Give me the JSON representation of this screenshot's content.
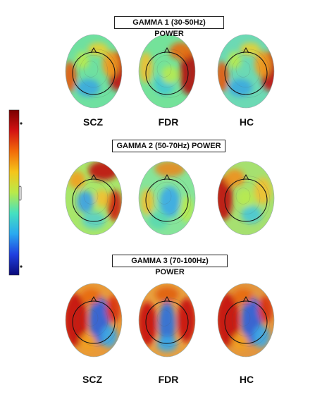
{
  "panels": [
    {
      "title": "GAMMA 1 (30-50Hz) POWER",
      "maps": [
        {
          "group": "SCZ",
          "hot": "right-temporal",
          "bg": "#6fe0a0"
        },
        {
          "group": "FDR",
          "hot": "right-temporal-strong",
          "bg": "#74e29a"
        },
        {
          "group": "HC",
          "hot": "right-temporal",
          "bg": "#6cd9b4"
        }
      ]
    },
    {
      "title": "GAMMA 2 (50-70Hz) POWER",
      "maps": [
        {
          "group": "SCZ",
          "hot": "frontal-right",
          "bg": "#a8e66a"
        },
        {
          "group": "FDR",
          "hot": "frontal-mild",
          "bg": "#86e49a"
        },
        {
          "group": "HC",
          "hot": "left-temporal",
          "bg": "#a6e070"
        }
      ]
    },
    {
      "title": "GAMMA 3 (70-100Hz) POWER",
      "maps": [
        {
          "group": "SCZ",
          "hot": "left-strong",
          "bg": "#e89a3a"
        },
        {
          "group": "FDR",
          "hot": "bilateral",
          "bg": "#e8a040"
        },
        {
          "group": "HC",
          "hot": "left-strong",
          "bg": "#e29640"
        }
      ]
    }
  ],
  "labels_top": [
    "SCZ",
    "FDR",
    "HC"
  ],
  "labels_bottom": [
    "SCZ",
    "FDR",
    "HC"
  ],
  "colorbar": {
    "stops": [
      "#7a0000",
      "#d31212",
      "#f26b0a",
      "#f5c51a",
      "#b9ea4a",
      "#45e0c0",
      "#2aa9f0",
      "#1f3fe0",
      "#0a0a7a"
    ]
  }
}
